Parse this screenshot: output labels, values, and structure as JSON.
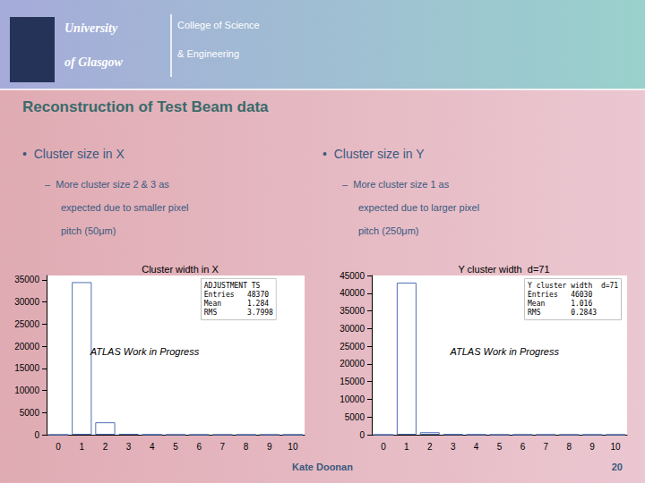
{
  "title": "Reconstruction of Test Beam data",
  "annotations": [
    "University",
    "of Glasgow",
    "College of Science",
    "& Engineering",
    "•  Cluster size in X",
    "–  More cluster size 2 & 3 as",
    "expected due to smaller pixel",
    "pitch (50μm)",
    "•  Cluster size in Y",
    "–  More cluster size 1 as",
    "expected due to larger pixel",
    "pitch (250μm)",
    "Kate Doonan",
    "20"
  ],
  "chart_data": [
    {
      "type": "bar",
      "title": "Cluster width in X",
      "categories": [
        "0",
        "1",
        "2",
        "3",
        "4",
        "5",
        "6",
        "7",
        "8",
        "9",
        "10"
      ],
      "values": [
        0,
        34500,
        2800,
        180,
        40,
        15,
        8,
        4,
        3,
        2,
        2
      ],
      "color": "#5070b0",
      "ylim": [
        0,
        36000
      ],
      "yticks": [
        0,
        5000,
        10000,
        15000,
        20000,
        25000,
        30000,
        35000
      ],
      "grid": false,
      "annotations": [
        "ADJUSTMENT TS\nEntries   48370\nMean      1.284\nRMS       3.7998",
        "ATLAS Work in Progress"
      ]
    },
    {
      "type": "bar",
      "title": "Y cluster width  d=71",
      "categories": [
        "0",
        "1",
        "2",
        "3",
        "4",
        "5",
        "6",
        "7",
        "8",
        "9",
        "10"
      ],
      "values": [
        0,
        43000,
        700,
        120,
        40,
        15,
        8,
        4,
        3,
        2,
        2
      ],
      "color": "#5070b0",
      "ylim": [
        0,
        45000
      ],
      "yticks": [
        0,
        5000,
        10000,
        15000,
        20000,
        25000,
        30000,
        35000,
        40000,
        45000
      ],
      "grid": false,
      "annotations": [
        "Y cluster width  d=71\nEntries   46030\nMean      1.016\nRMS       0.2843",
        "ATLAS Work in Progress"
      ]
    }
  ]
}
